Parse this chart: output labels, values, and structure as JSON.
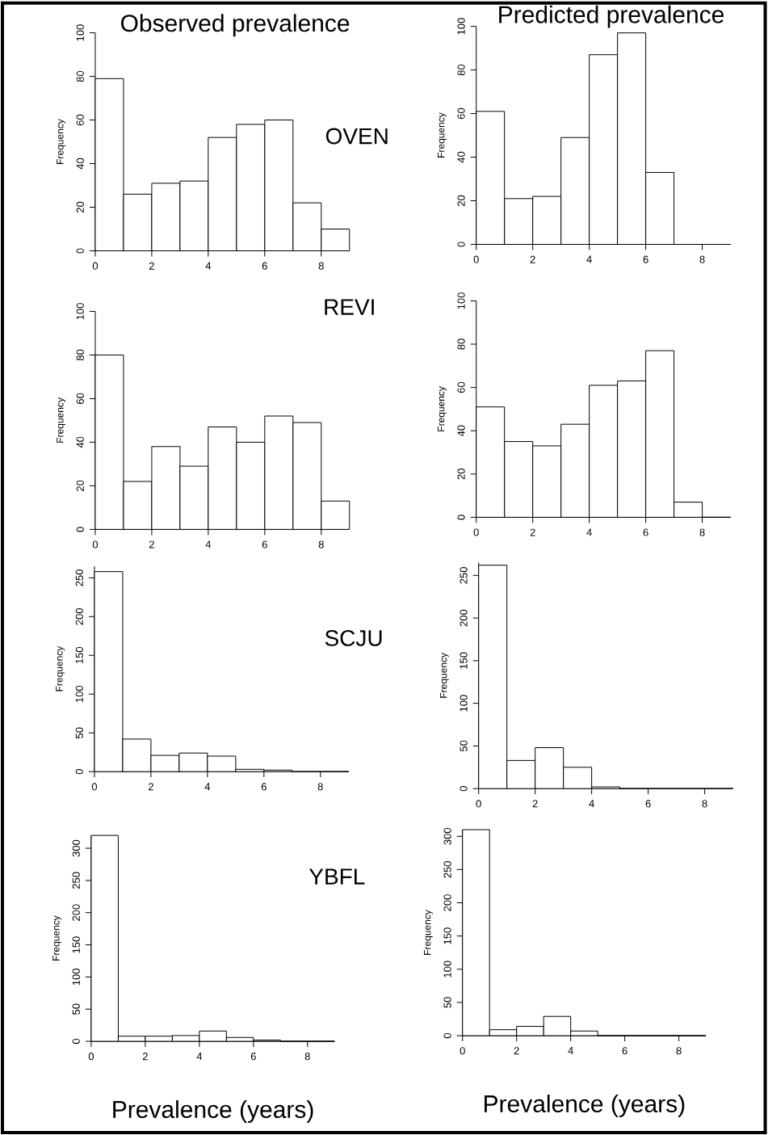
{
  "chart_data": [
    {
      "type": "histogram",
      "title": "Observed prevalence",
      "ylabel": "Frequency",
      "annotations": [
        "OVEN"
      ],
      "bins": [
        0,
        1,
        2,
        3,
        4,
        5,
        6,
        7,
        8,
        9
      ],
      "values": [
        79,
        26,
        31,
        32,
        52,
        58,
        60,
        22,
        10
      ],
      "color": "#ffffff",
      "xlim": [
        0,
        9
      ],
      "xticks": [
        0,
        2,
        4,
        6,
        8
      ],
      "ylim": [
        0,
        100
      ],
      "yticks": [
        0,
        20,
        40,
        60,
        80,
        100
      ]
    },
    {
      "type": "histogram",
      "title": "Predicted prevalence",
      "ylabel": "Frequency",
      "bins": [
        0,
        1,
        2,
        3,
        4,
        5,
        6,
        7,
        8,
        9
      ],
      "values": [
        61,
        21,
        22,
        49,
        87,
        97,
        33,
        0,
        0
      ],
      "color": "#ffffff",
      "xlim": [
        0,
        9
      ],
      "xticks": [
        0,
        2,
        4,
        6,
        8
      ],
      "ylim": [
        0,
        100
      ],
      "yticks": [
        0,
        20,
        40,
        60,
        80,
        100
      ]
    },
    {
      "type": "histogram",
      "ylabel": "Frequency",
      "annotations": [
        "REVI"
      ],
      "bins": [
        0,
        1,
        2,
        3,
        4,
        5,
        6,
        7,
        8,
        9
      ],
      "values": [
        80,
        22,
        38,
        29,
        47,
        40,
        52,
        49,
        13
      ],
      "color": "#ffffff",
      "xlim": [
        0,
        9
      ],
      "xticks": [
        0,
        2,
        4,
        6,
        8
      ],
      "ylim": [
        0,
        100
      ],
      "yticks": [
        0,
        20,
        40,
        60,
        80,
        100
      ]
    },
    {
      "type": "histogram",
      "ylabel": "Frequency",
      "bins": [
        0,
        1,
        2,
        3,
        4,
        5,
        6,
        7,
        8,
        9
      ],
      "values": [
        51,
        35,
        33,
        43,
        61,
        63,
        77,
        7,
        0
      ],
      "color": "#ffffff",
      "xlim": [
        0,
        9
      ],
      "xticks": [
        0,
        2,
        4,
        6,
        8
      ],
      "ylim": [
        0,
        100
      ],
      "yticks": [
        0,
        20,
        40,
        60,
        80,
        100
      ]
    },
    {
      "type": "histogram",
      "ylabel": "Frequency",
      "annotations": [
        "SCJU"
      ],
      "bins": [
        0,
        1,
        2,
        3,
        4,
        5,
        6,
        7,
        8,
        9
      ],
      "values": [
        258,
        42,
        21,
        24,
        20,
        3,
        2,
        0,
        0
      ],
      "color": "#ffffff",
      "xlim": [
        0,
        9
      ],
      "xticks": [
        0,
        2,
        4,
        6,
        8
      ],
      "ylim": [
        0,
        265
      ],
      "yticks": [
        0,
        50,
        100,
        150,
        200,
        250
      ]
    },
    {
      "type": "histogram",
      "ylabel": "Frequency",
      "bins": [
        0,
        1,
        2,
        3,
        4,
        5,
        6,
        7,
        8,
        9
      ],
      "values": [
        262,
        33,
        48,
        25,
        2,
        0,
        0,
        0,
        0
      ],
      "color": "#ffffff",
      "xlim": [
        0,
        9
      ],
      "xticks": [
        0,
        2,
        4,
        6,
        8
      ],
      "ylim": [
        0,
        265
      ],
      "yticks": [
        0,
        50,
        100,
        150,
        200,
        250
      ]
    },
    {
      "type": "histogram",
      "xlabel": "Prevalence (years)",
      "ylabel": "Frequency",
      "annotations": [
        "YBFL"
      ],
      "bins": [
        0,
        1,
        2,
        3,
        4,
        5,
        6,
        7,
        8,
        9
      ],
      "values": [
        320,
        8,
        8,
        9,
        16,
        6,
        2,
        0,
        0
      ],
      "color": "#ffffff",
      "xlim": [
        0,
        9
      ],
      "xticks": [
        0,
        2,
        4,
        6,
        8
      ],
      "ylim": [
        0,
        320
      ],
      "yticks": [
        0,
        50,
        100,
        150,
        200,
        250,
        300
      ]
    },
    {
      "type": "histogram",
      "xlabel": "Prevalence (years)",
      "ylabel": "Frequency",
      "bins": [
        0,
        1,
        2,
        3,
        4,
        5,
        6,
        7,
        8,
        9
      ],
      "values": [
        310,
        9,
        14,
        29,
        7,
        0,
        0,
        0,
        0
      ],
      "color": "#ffffff",
      "xlim": [
        0,
        9
      ],
      "xticks": [
        0,
        2,
        4,
        6,
        8
      ],
      "ylim": [
        0,
        310
      ],
      "yticks": [
        0,
        50,
        100,
        150,
        200,
        250,
        300
      ]
    }
  ]
}
